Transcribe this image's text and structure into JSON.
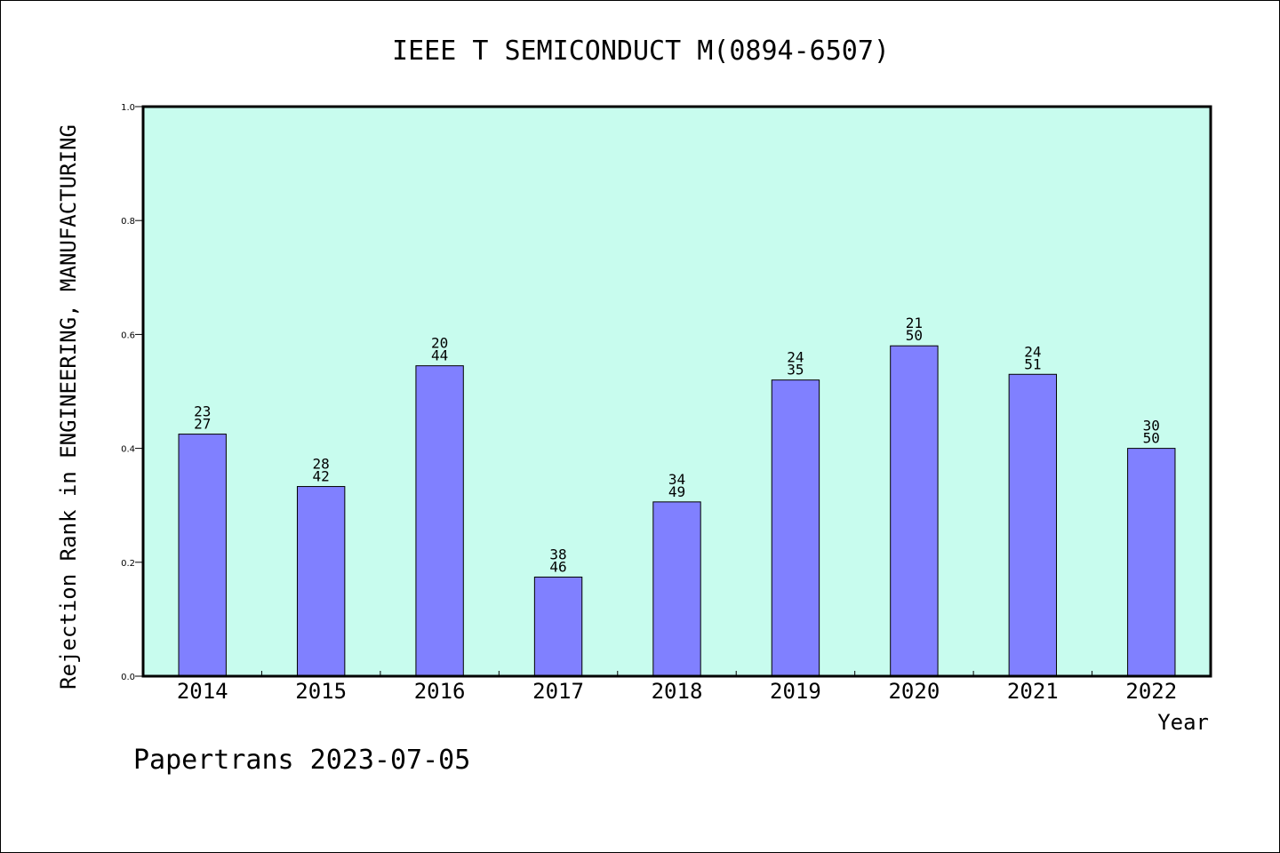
{
  "chart_data": {
    "type": "bar",
    "title": "IEEE T SEMICONDUCT M(0894-6507)",
    "xlabel": "Year",
    "ylabel": "Rejection Rank in ENGINEERING, MANUFACTURING",
    "categories": [
      "2014",
      "2015",
      "2016",
      "2017",
      "2018",
      "2019",
      "2020",
      "2021",
      "2022"
    ],
    "values": [
      0.425,
      0.333,
      0.545,
      0.174,
      0.306,
      0.52,
      0.58,
      0.53,
      0.4
    ],
    "label_top": [
      "23",
      "28",
      "20",
      "38",
      "34",
      "24",
      "21",
      "24",
      "30"
    ],
    "label_bottom": [
      "27",
      "42",
      "44",
      "46",
      "49",
      "35",
      "50",
      "51",
      "50"
    ],
    "ylim": [
      0.0,
      1.0
    ],
    "yticks": [
      "0.0",
      "0.2",
      "0.4",
      "0.6",
      "0.8",
      "1.0"
    ],
    "grid": false,
    "colors": {
      "plot_background": "#c8fcee",
      "bar_fill": "#8080ff",
      "bar_stroke": "#000000",
      "frame": "#000000"
    }
  },
  "footer": "Papertrans 2023-07-05"
}
